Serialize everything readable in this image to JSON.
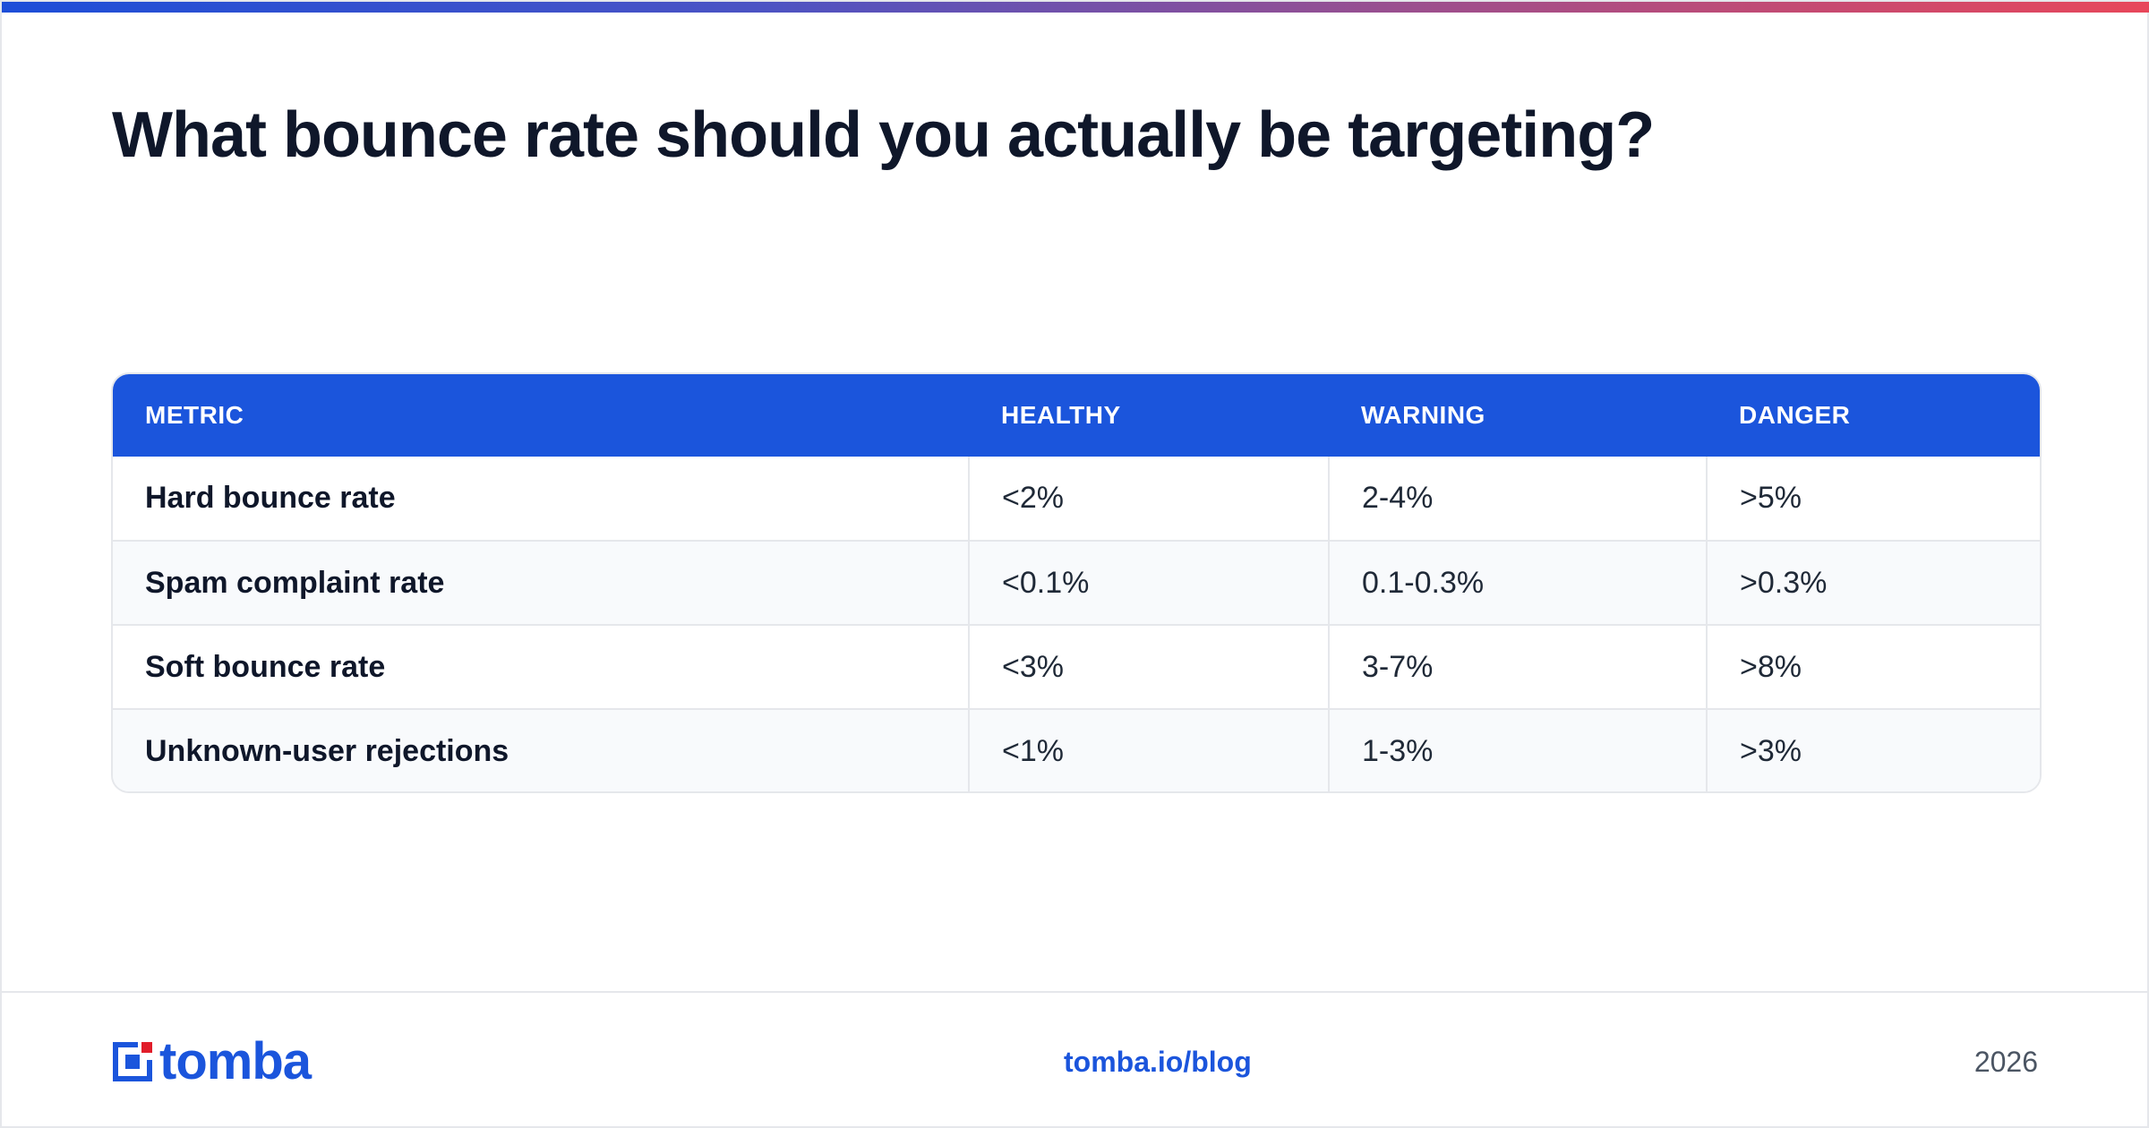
{
  "title": "What bounce rate should you actually be targeting?",
  "table": {
    "headers": [
      "METRIC",
      "HEALTHY",
      "WARNING",
      "DANGER"
    ],
    "rows": [
      [
        "Hard bounce rate",
        "<2%",
        "2-4%",
        ">5%"
      ],
      [
        "Spam complaint rate",
        "<0.1%",
        "0.1-0.3%",
        ">0.3%"
      ],
      [
        "Soft bounce rate",
        "<3%",
        "3-7%",
        ">8%"
      ],
      [
        "Unknown-user rejections",
        "<1%",
        "1-3%",
        ">3%"
      ]
    ]
  },
  "footer": {
    "logo_text": "tomba",
    "link": "tomba.io/blog",
    "year": "2026"
  },
  "colors": {
    "brand_blue": "#1b55dc",
    "brand_red": "#e11d2a",
    "title_text": "#0f172a",
    "accent_gradient_end": "#e8475a"
  },
  "icons": [
    "tomba-logo-icon"
  ]
}
